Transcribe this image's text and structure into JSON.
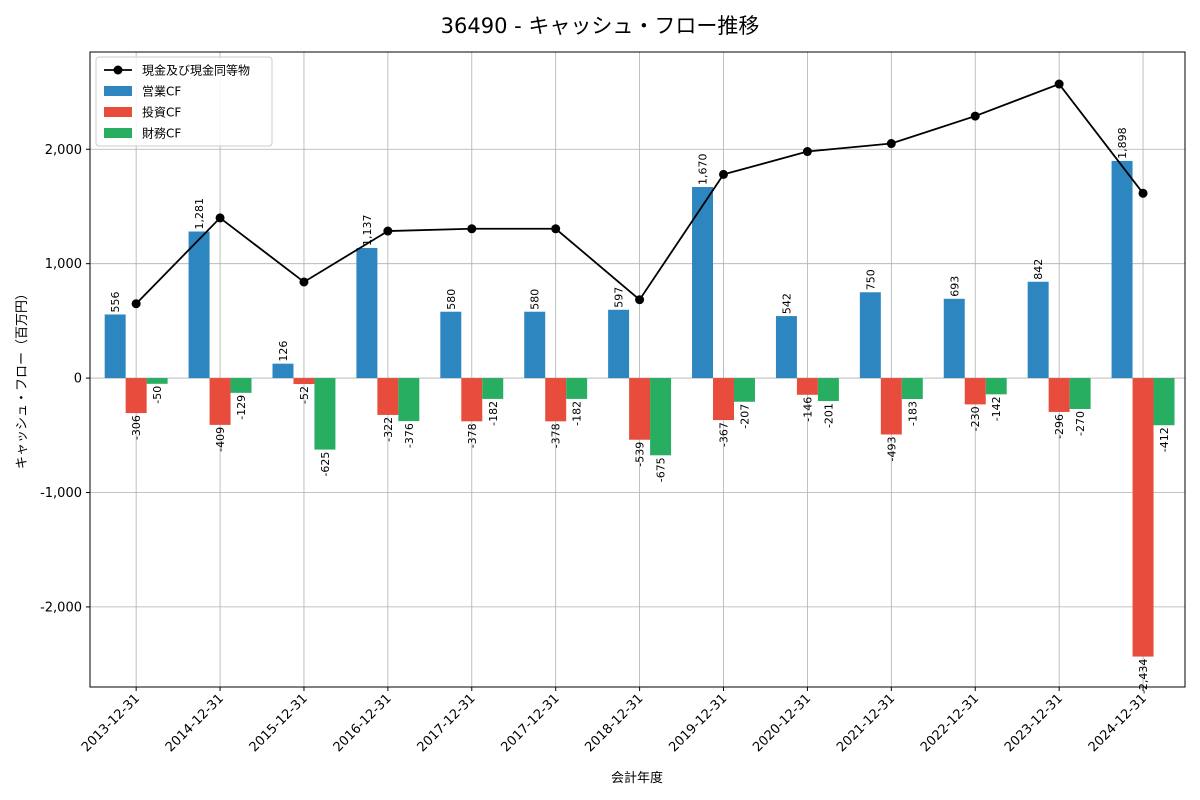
{
  "chart_data": {
    "type": "bar",
    "title": "36490 - キャッシュ・フロー推移",
    "xlabel": "会計年度",
    "ylabel": "キャッシュ・フロー（百万円）",
    "categories": [
      "2013-12-31",
      "2014-12-31",
      "2015-12-31",
      "2016-12-31",
      "2017-12-31",
      "2017-12-31",
      "2018-12-31",
      "2019-12-31",
      "2020-12-31",
      "2021-12-31",
      "2022-12-31",
      "2023-12-31",
      "2024-12-31"
    ],
    "ylim": [
      -2700,
      2850
    ],
    "yticks": [
      -2000,
      -1000,
      0,
      1000,
      2000
    ],
    "ytick_labels": [
      "-2,000",
      "-1,000",
      "0",
      "1,000",
      "2,000"
    ],
    "grid": true,
    "legend_position": "top-left",
    "series": [
      {
        "name": "営業CF",
        "kind": "bar",
        "color": "#2e86c1",
        "values": [
          556,
          1281,
          126,
          1137,
          580,
          580,
          597,
          1670,
          542,
          750,
          693,
          842,
          1898
        ],
        "labels": [
          "556",
          "1,281",
          "126",
          "1,137",
          "580",
          "580",
          "597",
          "1,670",
          "542",
          "750",
          "693",
          "842",
          "1,898"
        ]
      },
      {
        "name": "投資CF",
        "kind": "bar",
        "color": "#e74c3c",
        "values": [
          -306,
          -409,
          -52,
          -322,
          -378,
          -378,
          -539,
          -367,
          -146,
          -493,
          -230,
          -296,
          -2434
        ],
        "labels": [
          "-306",
          "-409",
          "-52",
          "-322",
          "-378",
          "-378",
          "-539",
          "-367",
          "-146",
          "-493",
          "-230",
          "-296",
          "-2,434"
        ]
      },
      {
        "name": "財務CF",
        "kind": "bar",
        "color": "#27ae60",
        "values": [
          -50,
          -129,
          -625,
          -376,
          -182,
          -182,
          -675,
          -207,
          -201,
          -183,
          -142,
          -270,
          -412
        ],
        "labels": [
          "-50",
          "-129",
          "-625",
          "-376",
          "-182",
          "-182",
          "-675",
          "-207",
          "-201",
          "-183",
          "-142",
          "-270",
          "-412"
        ]
      },
      {
        "name": "現金及び現金同等物",
        "kind": "line",
        "color": "#000000",
        "values": [
          650,
          1400,
          840,
          1285,
          1305,
          1305,
          685,
          1780,
          1980,
          2050,
          2290,
          2570,
          1615
        ]
      }
    ]
  }
}
